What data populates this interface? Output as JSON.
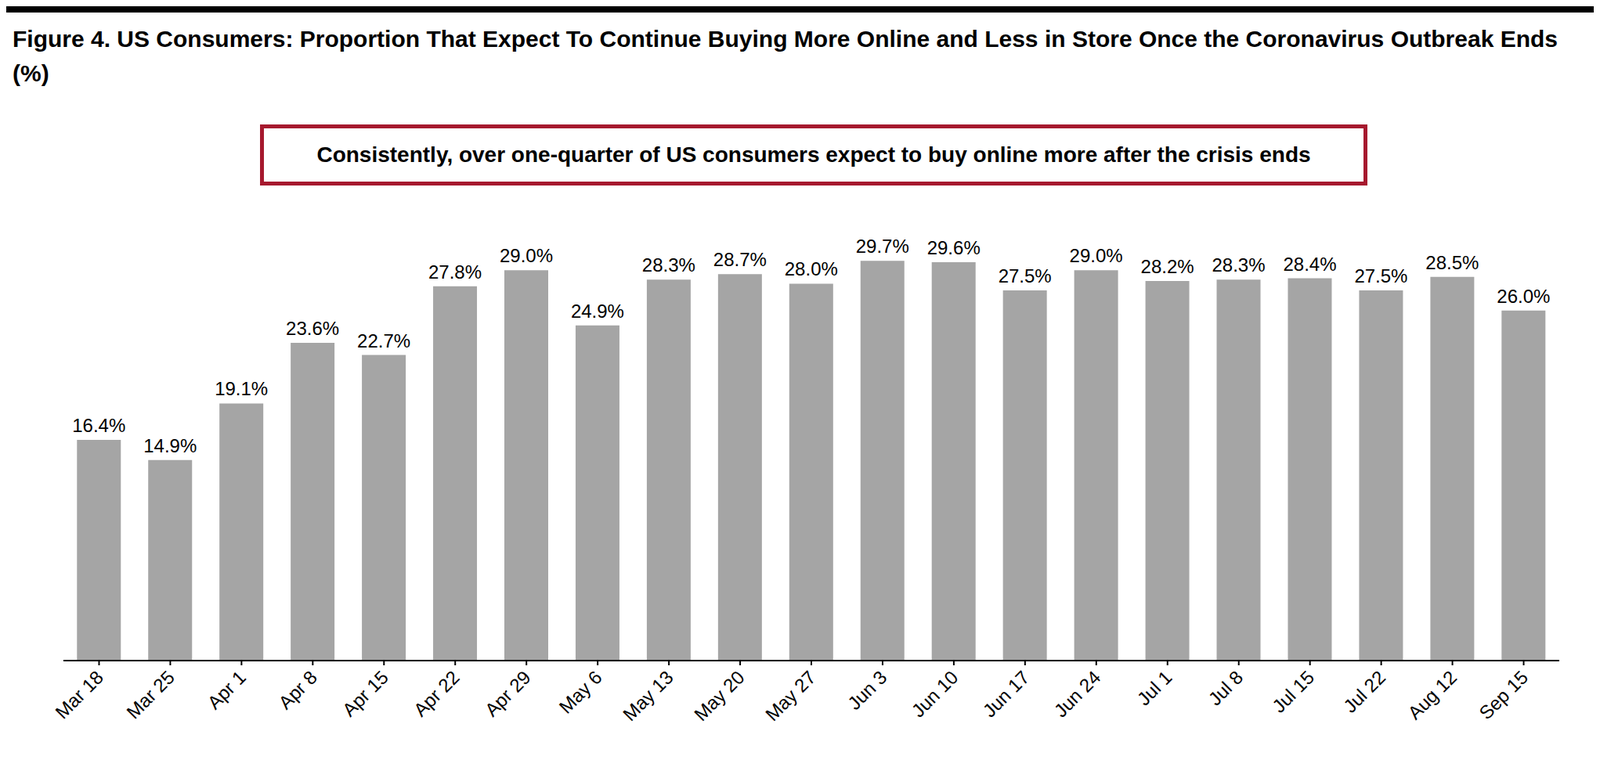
{
  "chart_data": {
    "type": "bar",
    "title": "Figure 4. US Consumers: Proportion That Expect To Continue Buying More Online and Less in Store Once the Coronavirus Outbreak Ends (%)",
    "annotation": "Consistently, over one-quarter of US consumers expect to buy online more after the crisis ends",
    "categories": [
      "Mar 18",
      "Mar 25",
      "Apr 1",
      "Apr 8",
      "Apr 15",
      "Apr 22",
      "Apr 29",
      "May 6",
      "May 13",
      "May 20",
      "May 27",
      "Jun 3",
      "Jun 10",
      "Jun 17",
      "Jun 24",
      "Jul 1",
      "Jul 8",
      "Jul 15",
      "Jul 22",
      "Aug 12",
      "Sep 15"
    ],
    "values": [
      16.4,
      14.9,
      19.1,
      23.6,
      22.7,
      27.8,
      29.0,
      24.9,
      28.3,
      28.7,
      28.0,
      29.7,
      29.6,
      27.5,
      29.0,
      28.2,
      28.3,
      28.4,
      27.5,
      28.5,
      26.0
    ],
    "value_labels": [
      "16.4%",
      "14.9%",
      "19.1%",
      "23.6%",
      "22.7%",
      "27.8%",
      "29.0%",
      "24.9%",
      "28.3%",
      "28.7%",
      "28.0%",
      "29.7%",
      "29.6%",
      "27.5%",
      "29.0%",
      "28.2%",
      "28.3%",
      "28.4%",
      "27.5%",
      "28.5%",
      "26.0%"
    ],
    "color": "#a5a5a5",
    "ylim": [
      0,
      35
    ],
    "yticks": [
      0,
      35
    ],
    "data_labels": true,
    "tick_labels": "x",
    "grid": false
  }
}
